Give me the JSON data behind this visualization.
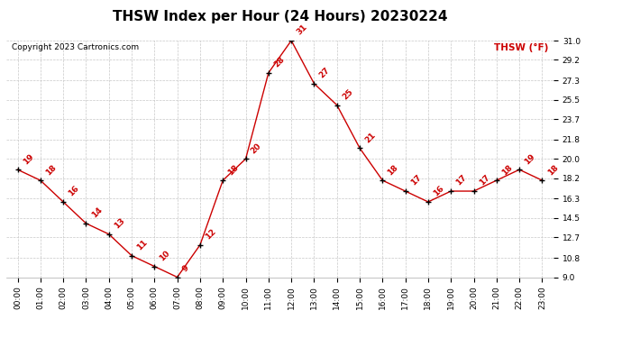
{
  "title": "THSW Index per Hour (24 Hours) 20230224",
  "copyright": "Copyright 2023 Cartronics.com",
  "legend_label": "THSW (°F)",
  "hours": [
    0,
    1,
    2,
    3,
    4,
    5,
    6,
    7,
    8,
    9,
    10,
    11,
    12,
    13,
    14,
    15,
    16,
    17,
    18,
    19,
    20,
    21,
    22,
    23
  ],
  "values": [
    19,
    18,
    16,
    14,
    13,
    11,
    10,
    9,
    12,
    18,
    20,
    28,
    31,
    27,
    25,
    21,
    18,
    17,
    16,
    17,
    17,
    18,
    19,
    18
  ],
  "ylim": [
    9.0,
    31.0
  ],
  "yticks": [
    9.0,
    10.8,
    12.7,
    14.5,
    16.3,
    18.2,
    20.0,
    21.8,
    23.7,
    25.5,
    27.3,
    29.2,
    31.0
  ],
  "line_color": "#cc0000",
  "marker_color": "#000000",
  "label_color": "#cc0000",
  "bg_color": "#ffffff",
  "grid_color": "#c8c8c8",
  "title_fontsize": 11,
  "label_fontsize": 6.5,
  "tick_fontsize": 6.5,
  "copyright_fontsize": 6.5,
  "legend_fontsize": 7.5
}
